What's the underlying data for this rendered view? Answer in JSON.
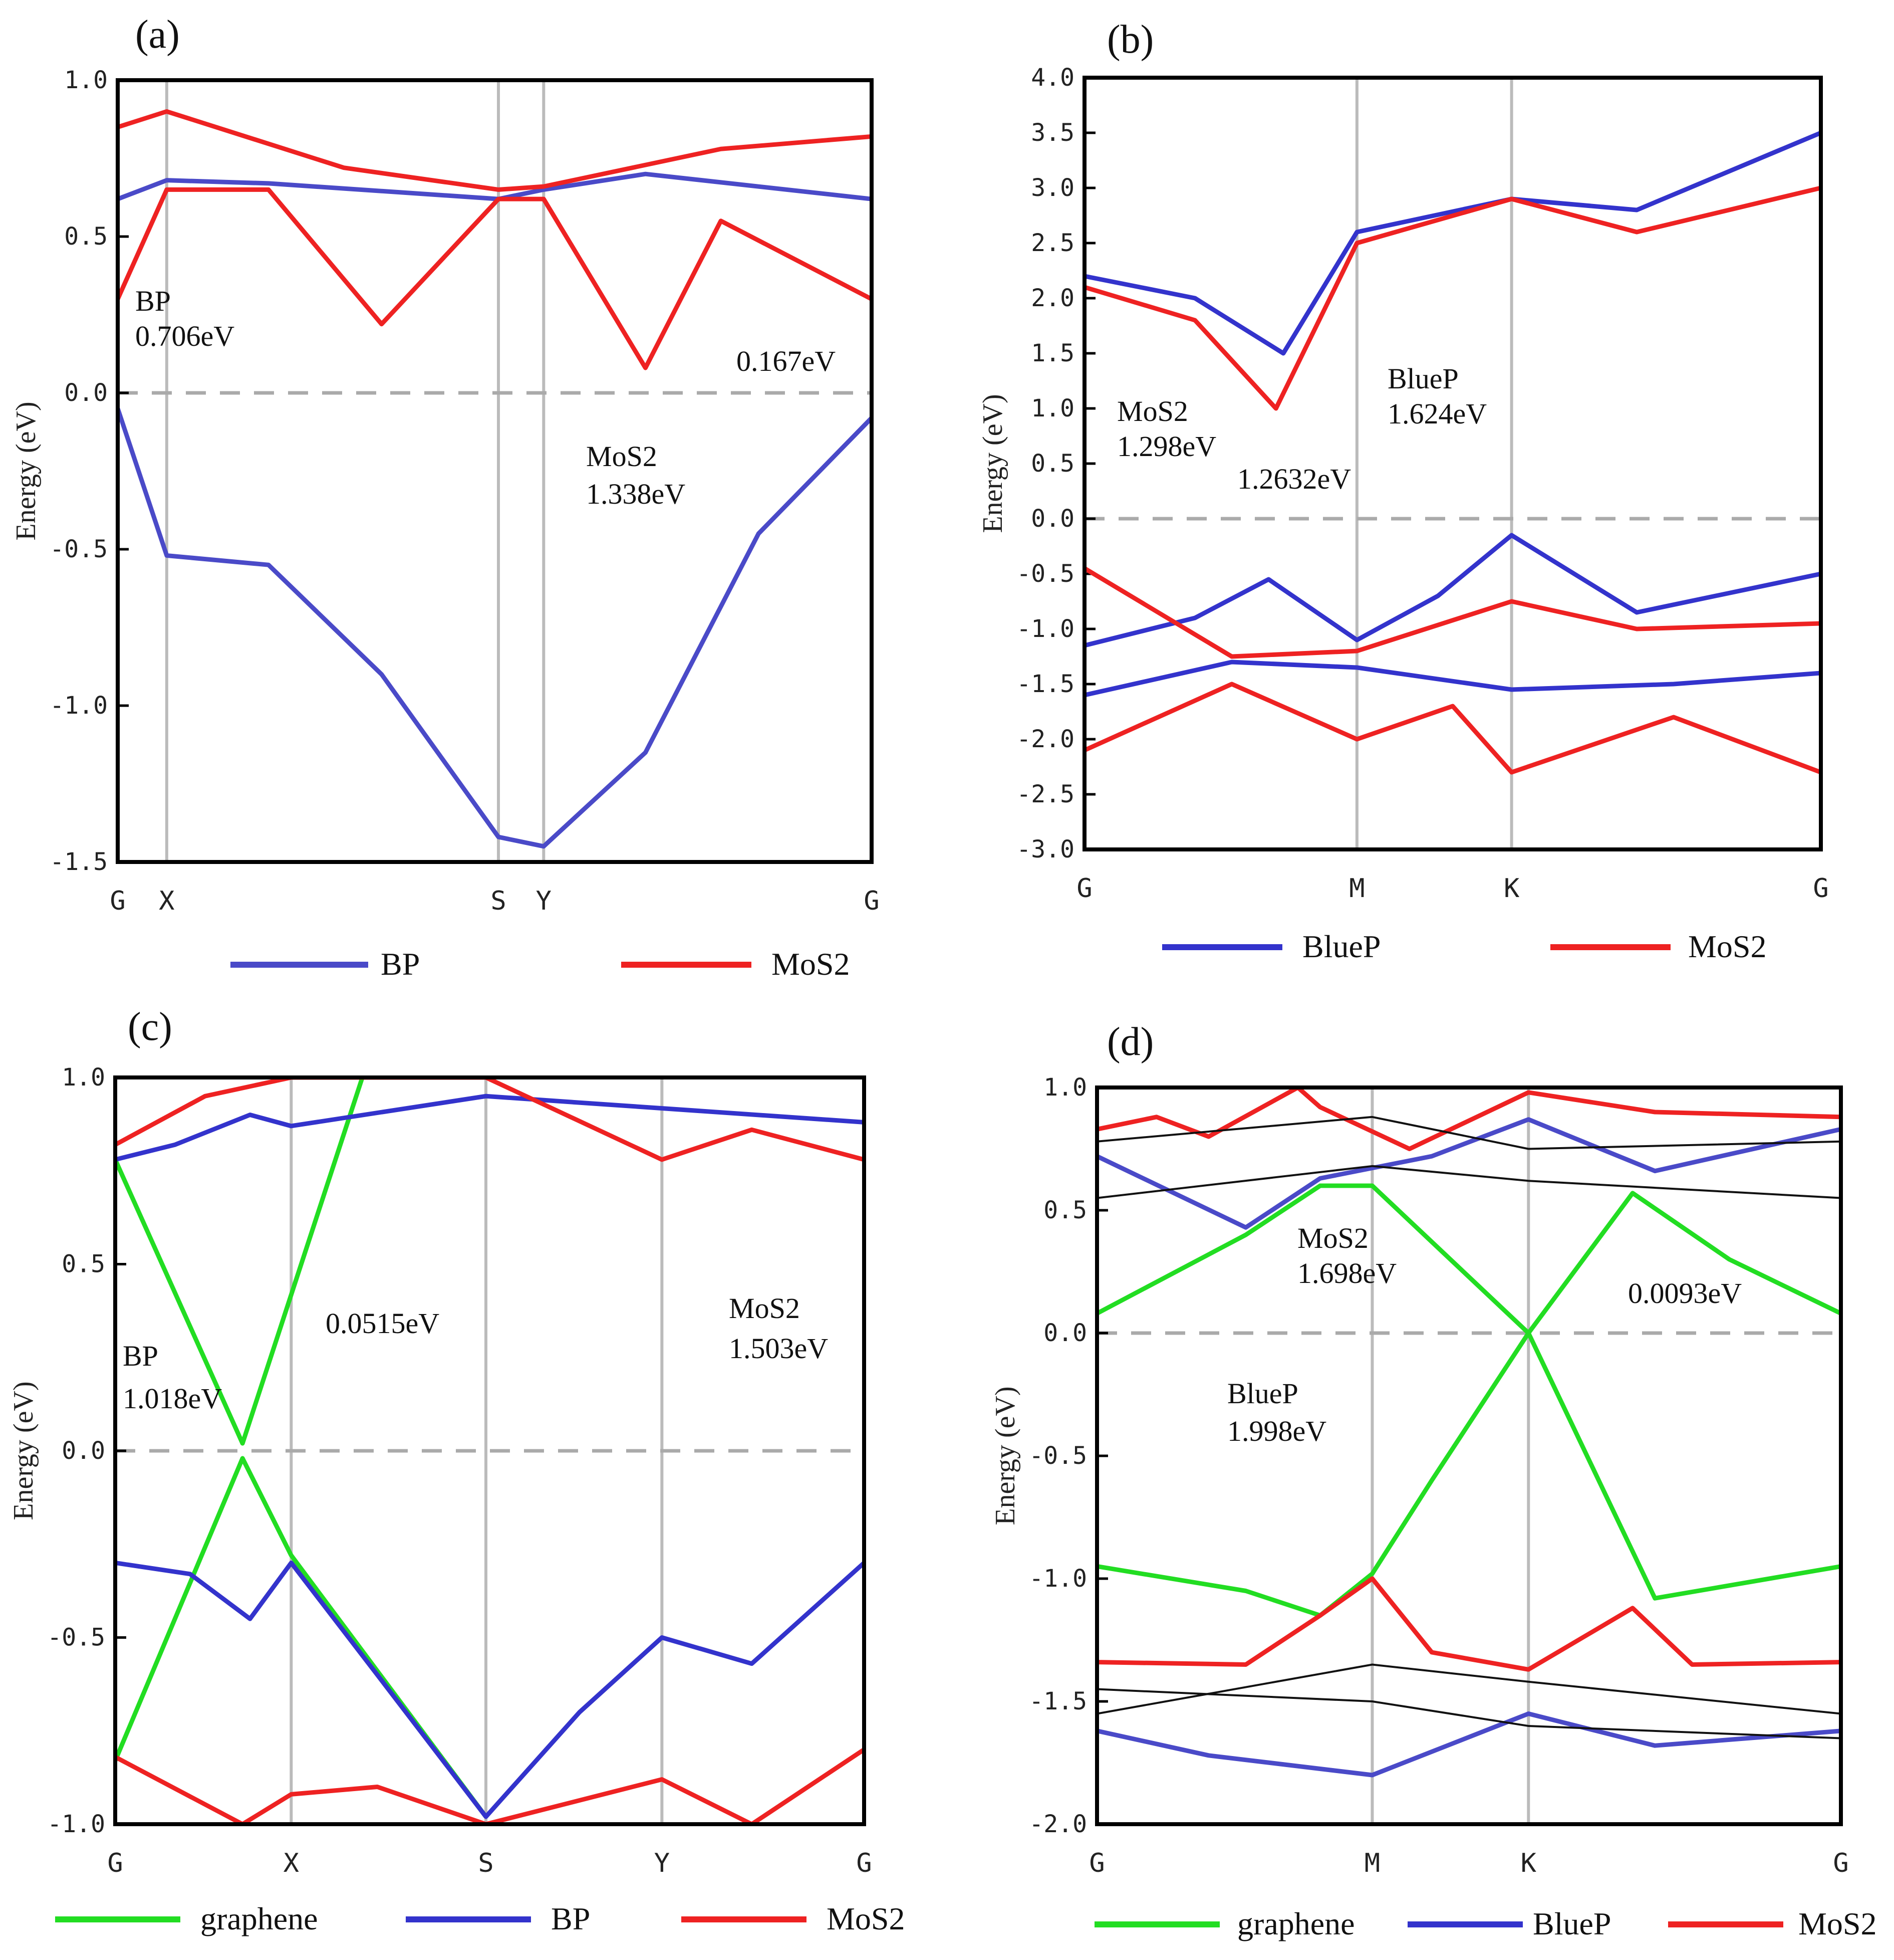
{
  "chart_data": [
    {
      "panel": "(a)",
      "type": "line",
      "ylabel": "Energy (eV)",
      "ylim": [
        -1.5,
        1.0
      ],
      "yticks": [
        "1.0",
        "0.5",
        "0.0",
        "-0.5",
        "-1.0",
        "-1.5"
      ],
      "kpoints": [
        "G",
        "X",
        "S",
        "Y",
        "G"
      ],
      "kpos": [
        0.0,
        0.065,
        0.505,
        0.565,
        1.0
      ],
      "fermi_level": 0.0,
      "legend": [
        {
          "name": "BP",
          "color": "#4a4ac8"
        },
        {
          "name": "MoS2",
          "color": "#ee2222"
        }
      ],
      "annotations": [
        {
          "label": "BP",
          "value": "0.706eV"
        },
        {
          "label": "MoS2",
          "value": "1.338eV"
        },
        {
          "label": "",
          "value": "0.167eV"
        }
      ],
      "series": [
        {
          "name": "BP",
          "color": "#4a4ac8",
          "x": [
            0,
            0.065,
            0.2,
            0.35,
            0.505,
            0.565,
            0.7,
            0.85,
            1.0
          ],
          "y": [
            -0.05,
            -0.52,
            -0.55,
            -0.9,
            -1.42,
            -1.45,
            -1.15,
            -0.45,
            -0.08
          ]
        },
        {
          "name": "BP",
          "color": "#4a4ac8",
          "x": [
            0,
            0.065,
            0.2,
            0.505,
            0.565,
            0.7,
            1.0
          ],
          "y": [
            0.62,
            0.68,
            0.67,
            0.62,
            0.65,
            0.7,
            0.62
          ]
        },
        {
          "name": "MoS2",
          "color": "#ee2222",
          "x": [
            0,
            0.065,
            0.2,
            0.35,
            0.505,
            0.565,
            0.7,
            0.8,
            1.0
          ],
          "y": [
            0.3,
            0.65,
            0.65,
            0.22,
            0.62,
            0.62,
            0.08,
            0.55,
            0.3
          ]
        },
        {
          "name": "MoS2",
          "color": "#ee2222",
          "x": [
            0,
            0.065,
            0.3,
            0.505,
            0.565,
            0.8,
            1.0
          ],
          "y": [
            0.85,
            0.9,
            0.72,
            0.65,
            0.66,
            0.78,
            0.82
          ]
        }
      ]
    },
    {
      "panel": "(b)",
      "type": "line",
      "ylabel": "Energy (eV)",
      "ylim": [
        -3.0,
        4.0
      ],
      "yticks": [
        "4.0",
        "3.5",
        "3.0",
        "2.5",
        "2.0",
        "1.5",
        "1.0",
        "0.5",
        "0.0",
        "-0.5",
        "-1.0",
        "-1.5",
        "-2.0",
        "-2.5",
        "-3.0"
      ],
      "kpoints": [
        "G",
        "M",
        "K",
        "G"
      ],
      "kpos": [
        0.0,
        0.37,
        0.58,
        1.0
      ],
      "fermi_level": 0.0,
      "legend": [
        {
          "name": "BlueP",
          "color": "#3333cc"
        },
        {
          "name": "MoS2",
          "color": "#ee2222"
        }
      ],
      "annotations": [
        {
          "label": "MoS2",
          "value": "1.298eV"
        },
        {
          "label": "BlueP",
          "value": "1.624eV"
        },
        {
          "label": "",
          "value": "1.2632eV"
        }
      ],
      "series": [
        {
          "name": "BlueP",
          "color": "#3333cc",
          "x": [
            0,
            0.15,
            0.27,
            0.37,
            0.58,
            0.75,
            1.0
          ],
          "y": [
            2.2,
            2.0,
            1.5,
            2.6,
            2.9,
            2.8,
            3.5
          ]
        },
        {
          "name": "BlueP",
          "color": "#3333cc",
          "x": [
            0,
            0.15,
            0.25,
            0.37,
            0.48,
            0.58,
            0.75,
            1.0
          ],
          "y": [
            -1.15,
            -0.9,
            -0.55,
            -1.1,
            -0.7,
            -0.15,
            -0.85,
            -0.5
          ]
        },
        {
          "name": "BlueP",
          "color": "#3333cc",
          "x": [
            0,
            0.2,
            0.37,
            0.58,
            0.8,
            1.0
          ],
          "y": [
            -1.6,
            -1.3,
            -1.35,
            -1.55,
            -1.5,
            -1.4
          ]
        },
        {
          "name": "MoS2",
          "color": "#ee2222",
          "x": [
            0,
            0.15,
            0.26,
            0.37,
            0.58,
            0.75,
            1.0
          ],
          "y": [
            2.1,
            1.8,
            1.0,
            2.5,
            2.9,
            2.6,
            3.0
          ]
        },
        {
          "name": "MoS2",
          "color": "#ee2222",
          "x": [
            0,
            0.2,
            0.37,
            0.58,
            0.75,
            1.0
          ],
          "y": [
            -0.45,
            -1.25,
            -1.2,
            -0.75,
            -1.0,
            -0.95
          ]
        },
        {
          "name": "MoS2",
          "color": "#ee2222",
          "x": [
            0,
            0.2,
            0.37,
            0.5,
            0.58,
            0.8,
            1.0
          ],
          "y": [
            -2.1,
            -1.5,
            -2.0,
            -1.7,
            -2.3,
            -1.8,
            -2.3
          ]
        }
      ]
    },
    {
      "panel": "(c)",
      "type": "line",
      "ylabel": "Energy (eV)",
      "ylim": [
        -1.0,
        1.0
      ],
      "yticks": [
        "1.0",
        "0.5",
        "0.0",
        "-0.5",
        "-1.0"
      ],
      "kpoints": [
        "G",
        "X",
        "S",
        "Y",
        "G"
      ],
      "kpos": [
        0.0,
        0.235,
        0.495,
        0.73,
        1.0
      ],
      "fermi_level": 0.0,
      "legend": [
        {
          "name": "graphene",
          "color": "#22dd22"
        },
        {
          "name": "BP",
          "color": "#3333cc"
        },
        {
          "name": "MoS2",
          "color": "#ee2222"
        }
      ],
      "annotations": [
        {
          "label": "BP",
          "value": "1.018eV"
        },
        {
          "label": "",
          "value": "0.0515eV"
        },
        {
          "label": "MoS2",
          "value": "1.503eV"
        }
      ],
      "series": [
        {
          "name": "graphene",
          "color": "#22dd22",
          "x": [
            0,
            0.17,
            0.33
          ],
          "y": [
            0.78,
            0.02,
            1.0
          ]
        },
        {
          "name": "graphene",
          "color": "#22dd22",
          "x": [
            0,
            0.17,
            0.235,
            0.495
          ],
          "y": [
            -0.83,
            -0.02,
            -0.28,
            -0.98
          ]
        },
        {
          "name": "BP",
          "color": "#3333cc",
          "x": [
            0,
            0.1,
            0.18,
            0.235,
            0.35,
            0.495,
            0.62,
            0.73,
            0.85,
            1.0
          ],
          "y": [
            -0.3,
            -0.33,
            -0.45,
            -0.3,
            -0.6,
            -0.98,
            -0.7,
            -0.5,
            -0.57,
            -0.3
          ]
        },
        {
          "name": "BP",
          "color": "#3333cc",
          "x": [
            0,
            0.08,
            0.18,
            0.235,
            0.495,
            1.0
          ],
          "y": [
            0.78,
            0.82,
            0.9,
            0.87,
            0.95,
            0.88
          ]
        },
        {
          "name": "MoS2",
          "color": "#ee2222",
          "x": [
            0,
            0.12,
            0.235,
            0.495,
            0.73,
            0.85,
            1.0
          ],
          "y": [
            0.82,
            0.95,
            1.0,
            1.0,
            0.78,
            0.86,
            0.78
          ]
        },
        {
          "name": "MoS2",
          "color": "#ee2222",
          "x": [
            0,
            0.17,
            0.235,
            0.35,
            0.495,
            0.73,
            0.85,
            1.0
          ],
          "y": [
            -0.82,
            -1.0,
            -0.92,
            -0.9,
            -1.0,
            -0.88,
            -1.0,
            -0.8
          ]
        }
      ]
    },
    {
      "panel": "(d)",
      "type": "line",
      "ylabel": "Energy (eV)",
      "ylim": [
        -2.0,
        1.0
      ],
      "yticks": [
        "1.0",
        "0.5",
        "0.0",
        "-0.5",
        "-1.0",
        "-1.5",
        "-2.0"
      ],
      "kpoints": [
        "G",
        "M",
        "K",
        "G"
      ],
      "kpos": [
        0.0,
        0.37,
        0.58,
        1.0
      ],
      "fermi_level": 0.0,
      "legend": [
        {
          "name": "graphene",
          "color": "#22dd22"
        },
        {
          "name": "BlueP",
          "color": "#3333cc"
        },
        {
          "name": "MoS2",
          "color": "#ee2222"
        }
      ],
      "annotations": [
        {
          "label": "MoS2",
          "value": "1.698eV"
        },
        {
          "label": "",
          "value": "0.0093eV"
        },
        {
          "label": "BlueP",
          "value": "1.998eV"
        }
      ],
      "series": [
        {
          "name": "graphene",
          "color": "#22dd22",
          "x": [
            0,
            0.2,
            0.3,
            0.37,
            0.58,
            0.72,
            0.85,
            1.0
          ],
          "y": [
            0.08,
            0.4,
            0.6,
            0.6,
            0.0,
            0.57,
            0.3,
            0.08
          ]
        },
        {
          "name": "graphene",
          "color": "#22dd22",
          "x": [
            0,
            0.2,
            0.3,
            0.37,
            0.45,
            0.58,
            0.75,
            1.0
          ],
          "y": [
            -0.95,
            -1.05,
            -1.15,
            -0.98,
            -0.6,
            0.0,
            -1.08,
            -0.95
          ]
        },
        {
          "name": "BlueP",
          "color": "#4a4ac8",
          "x": [
            0,
            0.2,
            0.3,
            0.45,
            0.58,
            0.75,
            1.0
          ],
          "y": [
            0.72,
            0.43,
            0.63,
            0.72,
            0.87,
            0.66,
            0.83
          ]
        },
        {
          "name": "BlueP",
          "color": "#4a4ac8",
          "x": [
            0,
            0.15,
            0.37,
            0.58,
            0.75,
            1.0
          ],
          "y": [
            -1.62,
            -1.72,
            -1.8,
            -1.55,
            -1.68,
            -1.62
          ]
        },
        {
          "name": "MoS2",
          "color": "#ee2222",
          "x": [
            0,
            0.2,
            0.3,
            0.37,
            0.45,
            0.58,
            0.72,
            0.8,
            1.0
          ],
          "y": [
            -1.34,
            -1.35,
            -1.15,
            -1.0,
            -1.3,
            -1.37,
            -1.12,
            -1.35,
            -1.34
          ]
        },
        {
          "name": "MoS2",
          "color": "#ee2222",
          "x": [
            0,
            0.08,
            0.15,
            0.27,
            0.3,
            0.42,
            0.58,
            0.75,
            1.0
          ],
          "y": [
            0.83,
            0.88,
            0.8,
            1.0,
            0.92,
            0.75,
            0.98,
            0.9,
            0.88
          ]
        },
        {
          "name": "other",
          "color": "#111111",
          "x": [
            0,
            0.37,
            0.58,
            1.0
          ],
          "y": [
            0.55,
            0.68,
            0.62,
            0.55
          ]
        },
        {
          "name": "other",
          "color": "#111111",
          "x": [
            0,
            0.37,
            0.58,
            1.0
          ],
          "y": [
            0.78,
            0.88,
            0.75,
            0.78
          ]
        },
        {
          "name": "other",
          "color": "#111111",
          "x": [
            0,
            0.37,
            0.58,
            1.0
          ],
          "y": [
            -1.55,
            -1.35,
            -1.42,
            -1.55
          ]
        },
        {
          "name": "other",
          "color": "#111111",
          "x": [
            0,
            0.37,
            0.58,
            1.0
          ],
          "y": [
            -1.45,
            -1.5,
            -1.6,
            -1.65
          ]
        }
      ]
    }
  ]
}
